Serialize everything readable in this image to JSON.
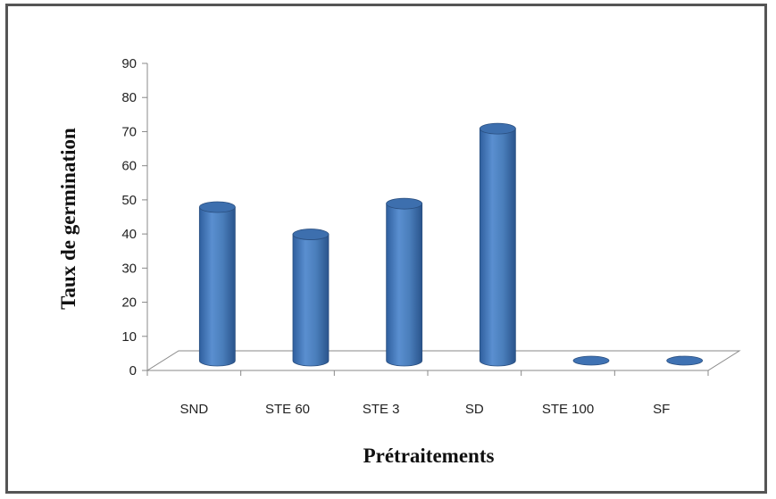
{
  "chart_data": {
    "type": "bar",
    "style": "3d-cylinder",
    "categories": [
      "SND",
      "STE 60",
      "STE 3",
      "SD",
      "STE 100",
      "SF"
    ],
    "values": [
      45,
      37,
      46,
      68,
      0,
      0
    ],
    "ylabel": "Taux de germination",
    "xlabel": "Prétraitements",
    "ylim": [
      0,
      90
    ],
    "yticks": [
      "0",
      "10",
      "20",
      "30",
      "40",
      "50",
      "60",
      "70",
      "80",
      "90"
    ],
    "grid": false,
    "legend": "none",
    "bar_color": "#4a7ebb"
  }
}
